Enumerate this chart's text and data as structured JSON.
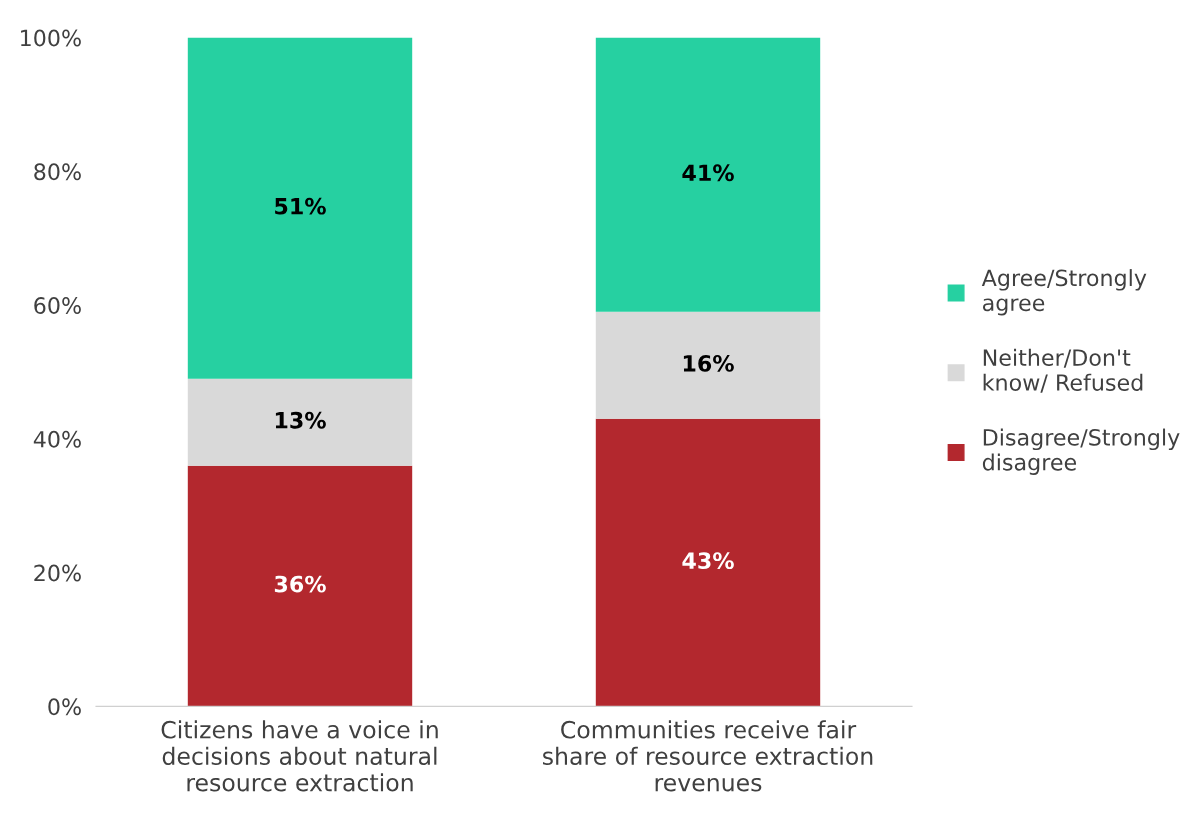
{
  "chart_data": {
    "type": "bar",
    "stacked": true,
    "categories": [
      "Citizens have a voice in\ndecisions about natural\nresource extraction",
      "Communities receive fair\nshare of resource extraction\nrevenues"
    ],
    "series": [
      {
        "name": "Disagree/Strongly\ndisagree",
        "color": "#b3282e",
        "values": [
          36,
          43
        ],
        "value_labels": [
          "36%",
          "43%"
        ]
      },
      {
        "name": "Neither/Don't\nknow/ Refused",
        "color": "#d9d9d9",
        "values": [
          13,
          16
        ],
        "value_labels": [
          "13%",
          "16%"
        ]
      },
      {
        "name": "Agree/Strongly\nagree",
        "color": "#26d0a1",
        "values": [
          51,
          41
        ],
        "value_labels": [
          "51%",
          "41%"
        ]
      }
    ],
    "ylim": [
      0,
      100
    ],
    "yticks": [
      {
        "value": 0,
        "label": "0%"
      },
      {
        "value": 20,
        "label": "20%"
      },
      {
        "value": 40,
        "label": "40%"
      },
      {
        "value": 60,
        "label": "60%"
      },
      {
        "value": 80,
        "label": "80%"
      },
      {
        "value": 100,
        "label": "100%"
      }
    ],
    "grid": false,
    "legend": "right"
  }
}
